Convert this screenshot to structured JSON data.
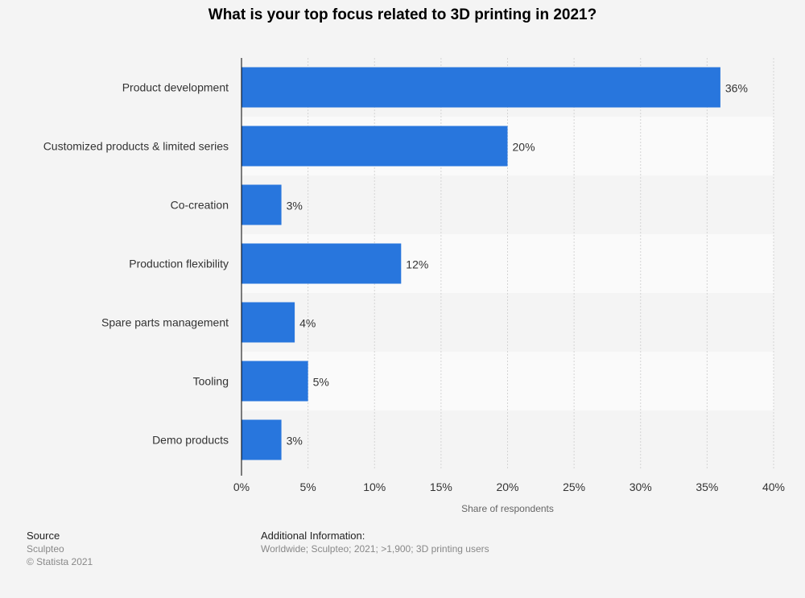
{
  "chart_data": {
    "type": "bar",
    "orientation": "horizontal",
    "title": "What is your top focus related to 3D printing in 2021?",
    "xlabel": "Share of respondents",
    "ylabel": "",
    "categories": [
      "Product development",
      "Customized products & limited series",
      "Co-creation",
      "Production flexibility",
      "Spare parts management",
      "Tooling",
      "Demo products"
    ],
    "values": [
      36,
      20,
      3,
      12,
      4,
      5,
      3
    ],
    "value_labels": [
      "36%",
      "20%",
      "3%",
      "12%",
      "4%",
      "5%",
      "3%"
    ],
    "xlim": [
      0,
      40
    ],
    "ticks": [
      0,
      5,
      10,
      15,
      20,
      25,
      30,
      35,
      40
    ],
    "tick_labels": [
      "0%",
      "5%",
      "10%",
      "15%",
      "20%",
      "25%",
      "30%",
      "35%",
      "40%"
    ],
    "grid": true,
    "bar_color": "#2876dd"
  },
  "footer": {
    "source_heading": "Source",
    "source_name": "Sculpteo",
    "copyright": "© Statista 2021",
    "info_heading": "Additional Information:",
    "info_text": "Worldwide; Sculpteo; 2021; >1,900; 3D printing users"
  }
}
